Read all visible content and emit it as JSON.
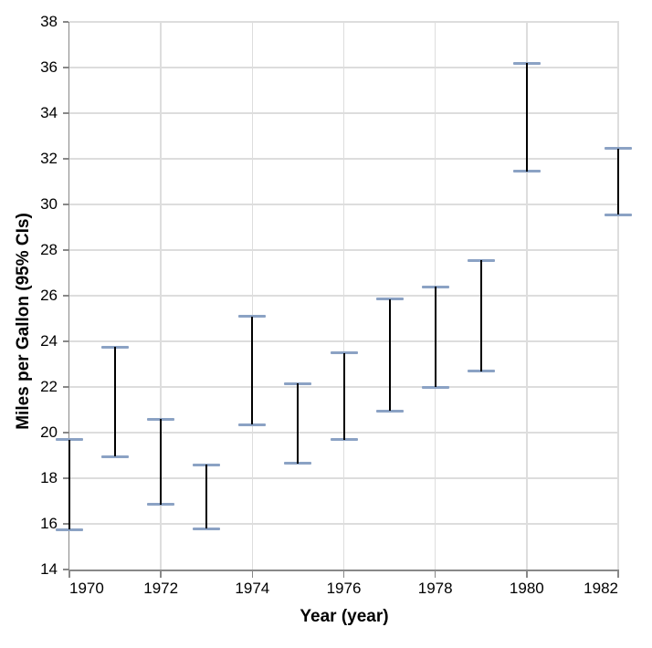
{
  "chart_data": {
    "type": "errorbar",
    "title": "",
    "xlabel": "Year (year)",
    "ylabel": "Miles per Gallon (95% CIs)",
    "xlim": [
      1970,
      1982
    ],
    "ylim": [
      14,
      38
    ],
    "x_ticks": [
      1970,
      1972,
      1974,
      1976,
      1978,
      1980,
      1982
    ],
    "y_ticks": [
      14,
      16,
      18,
      20,
      22,
      24,
      26,
      28,
      30,
      32,
      34,
      36,
      38
    ],
    "grid": true,
    "legend": "none",
    "series": [
      {
        "name": "Miles per Gallon (95% CIs)",
        "points": [
          {
            "year": 1970,
            "lower": 15.75,
            "upper": 19.7
          },
          {
            "year": 1971,
            "lower": 18.95,
            "upper": 23.75
          },
          {
            "year": 1972,
            "lower": 16.85,
            "upper": 20.6
          },
          {
            "year": 1973,
            "lower": 15.8,
            "upper": 18.6
          },
          {
            "year": 1974,
            "lower": 20.35,
            "upper": 25.1
          },
          {
            "year": 1975,
            "lower": 18.65,
            "upper": 22.15
          },
          {
            "year": 1976,
            "lower": 19.7,
            "upper": 23.5
          },
          {
            "year": 1977,
            "lower": 20.95,
            "upper": 25.85
          },
          {
            "year": 1978,
            "lower": 22.0,
            "upper": 26.4
          },
          {
            "year": 1979,
            "lower": 22.7,
            "upper": 27.55
          },
          {
            "year": 1980,
            "lower": 31.45,
            "upper": 36.2
          },
          {
            "year": 1982,
            "lower": 29.55,
            "upper": 32.45
          }
        ]
      }
    ],
    "colors": {
      "rule": "#000000",
      "cap": "#8ba2c4",
      "grid": "#dddddd",
      "axis": "#888888",
      "label": "#000000"
    }
  }
}
